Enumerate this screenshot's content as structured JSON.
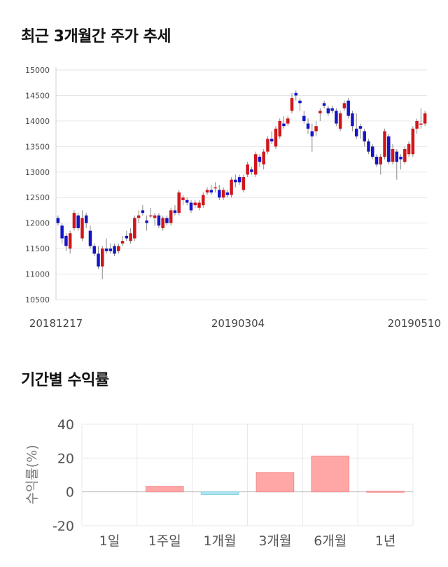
{
  "section1": {
    "title": "최근 3개월간 주가 추세"
  },
  "section2": {
    "title": "기간별 수익률"
  },
  "colors": {
    "up": "#d0161a",
    "down": "#1515c8",
    "positive_bar": "#ffa7a7",
    "negative_bar": "#aee6f4"
  },
  "chart_data": [
    {
      "type": "candlestick",
      "y_ticks": [
        "15000",
        "14500",
        "14000",
        "13500",
        "13000",
        "12500",
        "12000",
        "11500",
        "11000",
        "10500"
      ],
      "x_tick_labels": [
        "20181217",
        "20190304",
        "20190510"
      ],
      "ylim": [
        10500,
        15000
      ],
      "grid": true,
      "candles": [
        [
          12100,
          12150,
          11950,
          12000
        ],
        [
          11950,
          12000,
          11600,
          11700
        ],
        [
          11750,
          11800,
          11450,
          11550
        ],
        [
          11500,
          11850,
          11400,
          11800
        ],
        [
          11900,
          12250,
          11850,
          12200
        ],
        [
          12150,
          12200,
          11850,
          11900
        ],
        [
          11700,
          12250,
          11650,
          12100
        ],
        [
          12150,
          12200,
          11900,
          12000
        ],
        [
          11850,
          11950,
          11500,
          11550
        ],
        [
          11550,
          11600,
          11350,
          11400
        ],
        [
          11400,
          11550,
          11100,
          11150
        ],
        [
          11150,
          11550,
          10900,
          11500
        ],
        [
          11500,
          11700,
          11400,
          11450
        ],
        [
          11500,
          11600,
          11400,
          11450
        ],
        [
          11550,
          11600,
          11350,
          11400
        ],
        [
          11450,
          11600,
          11400,
          11550
        ],
        [
          11600,
          11750,
          11550,
          11650
        ],
        [
          11750,
          11850,
          11650,
          11700
        ],
        [
          11650,
          11900,
          11600,
          11800
        ],
        [
          11700,
          12150,
          11650,
          12100
        ],
        [
          12100,
          12250,
          12000,
          12150
        ],
        [
          12250,
          12350,
          12150,
          12200
        ],
        [
          12050,
          12150,
          11850,
          12000
        ],
        [
          12150,
          12300,
          12100,
          12150
        ],
        [
          12100,
          12200,
          11950,
          12150
        ],
        [
          12150,
          12200,
          11900,
          11950
        ],
        [
          11900,
          12150,
          11850,
          12100
        ],
        [
          12100,
          12150,
          11950,
          12000
        ],
        [
          12000,
          12300,
          11950,
          12250
        ],
        [
          12250,
          12350,
          12150,
          12200
        ],
        [
          12200,
          12650,
          12150,
          12600
        ],
        [
          12450,
          12550,
          12350,
          12500
        ],
        [
          12450,
          12500,
          12350,
          12400
        ],
        [
          12400,
          12450,
          12200,
          12250
        ],
        [
          12350,
          12450,
          12300,
          12400
        ],
        [
          12300,
          12450,
          12250,
          12400
        ],
        [
          12350,
          12600,
          12300,
          12550
        ],
        [
          12600,
          12700,
          12550,
          12650
        ],
        [
          12650,
          12750,
          12550,
          12600
        ],
        [
          12700,
          12800,
          12600,
          12700
        ],
        [
          12650,
          12750,
          12450,
          12500
        ],
        [
          12500,
          12700,
          12450,
          12650
        ],
        [
          12600,
          12650,
          12500,
          12550
        ],
        [
          12550,
          12900,
          12500,
          12850
        ],
        [
          12850,
          12950,
          12700,
          12800
        ],
        [
          12900,
          12950,
          12750,
          12800
        ],
        [
          12650,
          12950,
          12600,
          12900
        ],
        [
          12950,
          13200,
          12900,
          13150
        ],
        [
          13050,
          13100,
          12950,
          13000
        ],
        [
          12950,
          13400,
          12900,
          13350
        ],
        [
          13300,
          13350,
          13100,
          13200
        ],
        [
          13150,
          13450,
          13050,
          13400
        ],
        [
          13400,
          13700,
          13350,
          13650
        ],
        [
          13650,
          13800,
          13550,
          13600
        ],
        [
          13500,
          13900,
          13450,
          13850
        ],
        [
          13700,
          14050,
          13650,
          14000
        ],
        [
          13950,
          14100,
          13850,
          13900
        ],
        [
          13950,
          14100,
          13900,
          14050
        ],
        [
          14200,
          14550,
          14150,
          14450
        ],
        [
          14550,
          14600,
          14400,
          14500
        ],
        [
          14400,
          14450,
          14200,
          14350
        ],
        [
          14100,
          14200,
          13950,
          14000
        ],
        [
          13950,
          14050,
          13750,
          13850
        ],
        [
          13800,
          13950,
          13400,
          13700
        ],
        [
          13800,
          14000,
          13700,
          13900
        ],
        [
          14150,
          14250,
          14000,
          14200
        ],
        [
          14350,
          14400,
          14250,
          14300
        ],
        [
          14250,
          14300,
          14100,
          14150
        ],
        [
          14250,
          14300,
          14150,
          14200
        ],
        [
          14200,
          14250,
          13900,
          13950
        ],
        [
          13850,
          14200,
          13800,
          14150
        ],
        [
          14250,
          14400,
          14200,
          14350
        ],
        [
          14400,
          14450,
          14050,
          14100
        ],
        [
          14150,
          14200,
          13800,
          13900
        ],
        [
          13850,
          14150,
          13650,
          13700
        ],
        [
          13900,
          13950,
          13650,
          13850
        ],
        [
          13800,
          13850,
          13500,
          13600
        ],
        [
          13600,
          13650,
          13350,
          13400
        ],
        [
          13500,
          13550,
          13250,
          13300
        ],
        [
          13300,
          13350,
          13100,
          13150
        ],
        [
          13150,
          13350,
          12950,
          13300
        ],
        [
          13300,
          13850,
          13250,
          13800
        ],
        [
          13700,
          13750,
          13150,
          13200
        ],
        [
          13200,
          13550,
          13150,
          13450
        ],
        [
          13400,
          13450,
          12850,
          13200
        ],
        [
          13300,
          13350,
          13050,
          13250
        ],
        [
          13200,
          13500,
          13150,
          13450
        ],
        [
          13350,
          13600,
          13300,
          13550
        ],
        [
          13350,
          13900,
          13300,
          13850
        ],
        [
          13850,
          14050,
          13750,
          14000
        ],
        [
          13950,
          14250,
          13850,
          13950
        ],
        [
          13950,
          14200,
          13900,
          14150
        ]
      ]
    },
    {
      "type": "bar",
      "categories": [
        "1일",
        "1주일",
        "1개월",
        "3개월",
        "6개월",
        "1년"
      ],
      "values": [
        0,
        3.3,
        -1.6,
        11.5,
        21.2,
        0.4
      ],
      "ylabel": "수익률(%)",
      "ylim": [
        -20,
        40
      ],
      "y_ticks": [
        "40",
        "20",
        "0",
        "-20"
      ],
      "grid": true
    }
  ]
}
